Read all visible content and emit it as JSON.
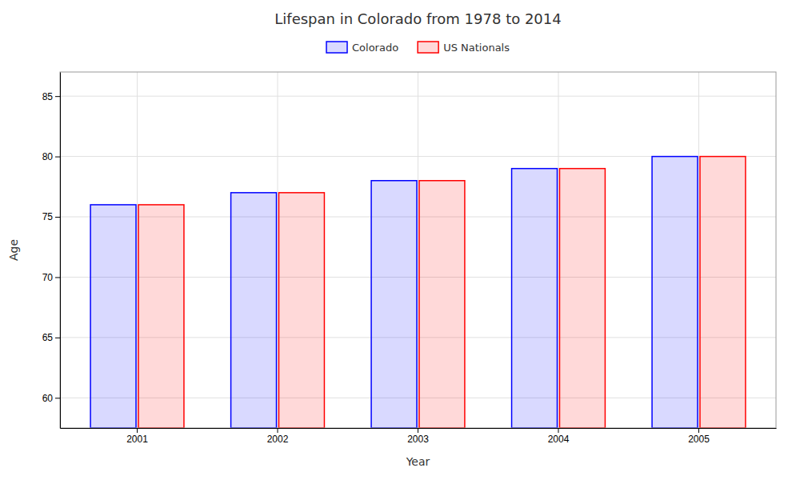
{
  "chart_data": {
    "type": "bar",
    "title": "Lifespan in Colorado from 1978 to 2014",
    "x_label": "Year",
    "y_label": "Age",
    "categories": [
      "2001",
      "2002",
      "2003",
      "2004",
      "2005"
    ],
    "series": [
      {
        "name": "Colorado",
        "color": "#0000ff",
        "values": [
          76,
          77,
          78,
          79,
          80
        ]
      },
      {
        "name": "US Nationals",
        "color": "#ff0000",
        "values": [
          76,
          77,
          78,
          79,
          80
        ]
      }
    ],
    "ylim": [
      57.5,
      87
    ],
    "yticks": [
      60,
      65,
      70,
      75,
      80,
      85
    ],
    "grid": true,
    "legend": "top"
  }
}
